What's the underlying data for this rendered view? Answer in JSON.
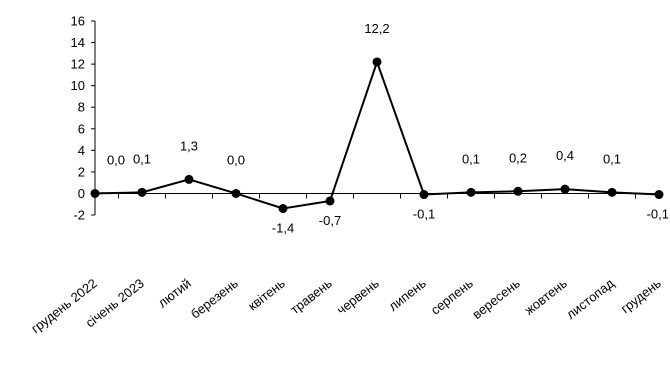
{
  "chart_data": {
    "type": "line",
    "title": "",
    "xlabel": "",
    "ylabel": "",
    "ylim": [
      -2,
      16
    ],
    "yticks": [
      -2,
      0,
      2,
      4,
      6,
      8,
      10,
      12,
      14,
      16
    ],
    "grid": false,
    "legend": "none",
    "categories": [
      "грудень 2022",
      "січень 2023",
      "лютий",
      "березень",
      "квітень",
      "травень",
      "червень",
      "липень",
      "серпень",
      "вересень",
      "жовтень",
      "листопад",
      "грудень"
    ],
    "series": [
      {
        "values": [
          0.0,
          0.1,
          1.3,
          0.0,
          -1.4,
          -0.7,
          12.2,
          -0.1,
          0.1,
          0.2,
          0.4,
          0.1,
          -0.1
        ],
        "labels": [
          "0,0",
          "0,1",
          "1,3",
          "0,0",
          "-1,4",
          "-0,7",
          "12,2",
          "-0,1",
          "0,1",
          "0,2",
          "0,4",
          "0,1",
          "-0,1"
        ],
        "color": "#000000"
      }
    ]
  }
}
